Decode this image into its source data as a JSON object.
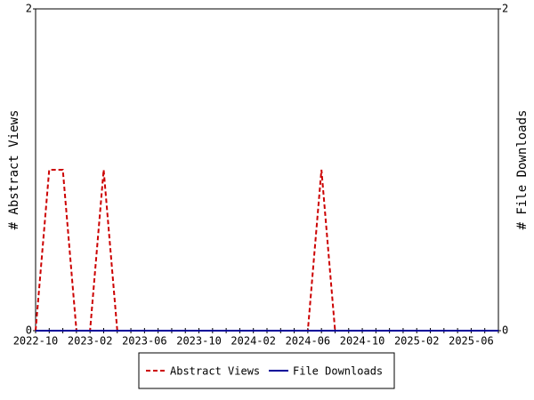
{
  "chart_data": {
    "type": "line",
    "categories": [
      "2022-10",
      null,
      null,
      null,
      "2023-02",
      null,
      null,
      null,
      "2023-06",
      null,
      null,
      null,
      "2023-10",
      null,
      null,
      null,
      "2024-02",
      null,
      null,
      null,
      "2024-06",
      null,
      null,
      null,
      "2024-10",
      null,
      null,
      null,
      "2025-02",
      null,
      null,
      null,
      "2025-06",
      null,
      null
    ],
    "series": [
      {
        "name": "Abstract Views",
        "color": "#cc0000",
        "dash": true,
        "values": [
          0,
          1,
          1,
          0,
          0,
          1,
          0,
          0,
          0,
          0,
          0,
          0,
          0,
          0,
          0,
          0,
          0,
          0,
          0,
          0,
          0,
          1,
          0,
          0,
          0,
          0,
          0,
          0,
          0,
          0,
          0,
          0,
          0,
          0,
          0
        ]
      },
      {
        "name": "File Downloads",
        "color": "#000099",
        "dash": false,
        "axis": "y2",
        "values": [
          0,
          0,
          0,
          0,
          0,
          0,
          0,
          0,
          0,
          0,
          0,
          0,
          0,
          0,
          0,
          0,
          0,
          0,
          0,
          0,
          0,
          0,
          0,
          0,
          0,
          0,
          0,
          0,
          0,
          0,
          0,
          0,
          0,
          0,
          0
        ]
      }
    ],
    "y_label": "# Abstract Views",
    "y2_label": "# File Downloads",
    "ylim": [
      0,
      2
    ],
    "yticks": [
      0,
      2
    ],
    "y2lim": [
      0,
      2
    ],
    "y2ticks": [
      0,
      2
    ]
  }
}
